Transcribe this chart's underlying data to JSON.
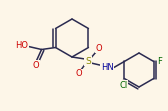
{
  "bg_color": "#fdf6e8",
  "bond_color": "#2a2a50",
  "atom_colors": {
    "O": "#cc0000",
    "S": "#888800",
    "N": "#000099",
    "F": "#006600",
    "Cl": "#006600",
    "H": "#1a1a1a"
  },
  "figsize": [
    1.68,
    1.11
  ],
  "dpi": 100,
  "lw": 1.1
}
